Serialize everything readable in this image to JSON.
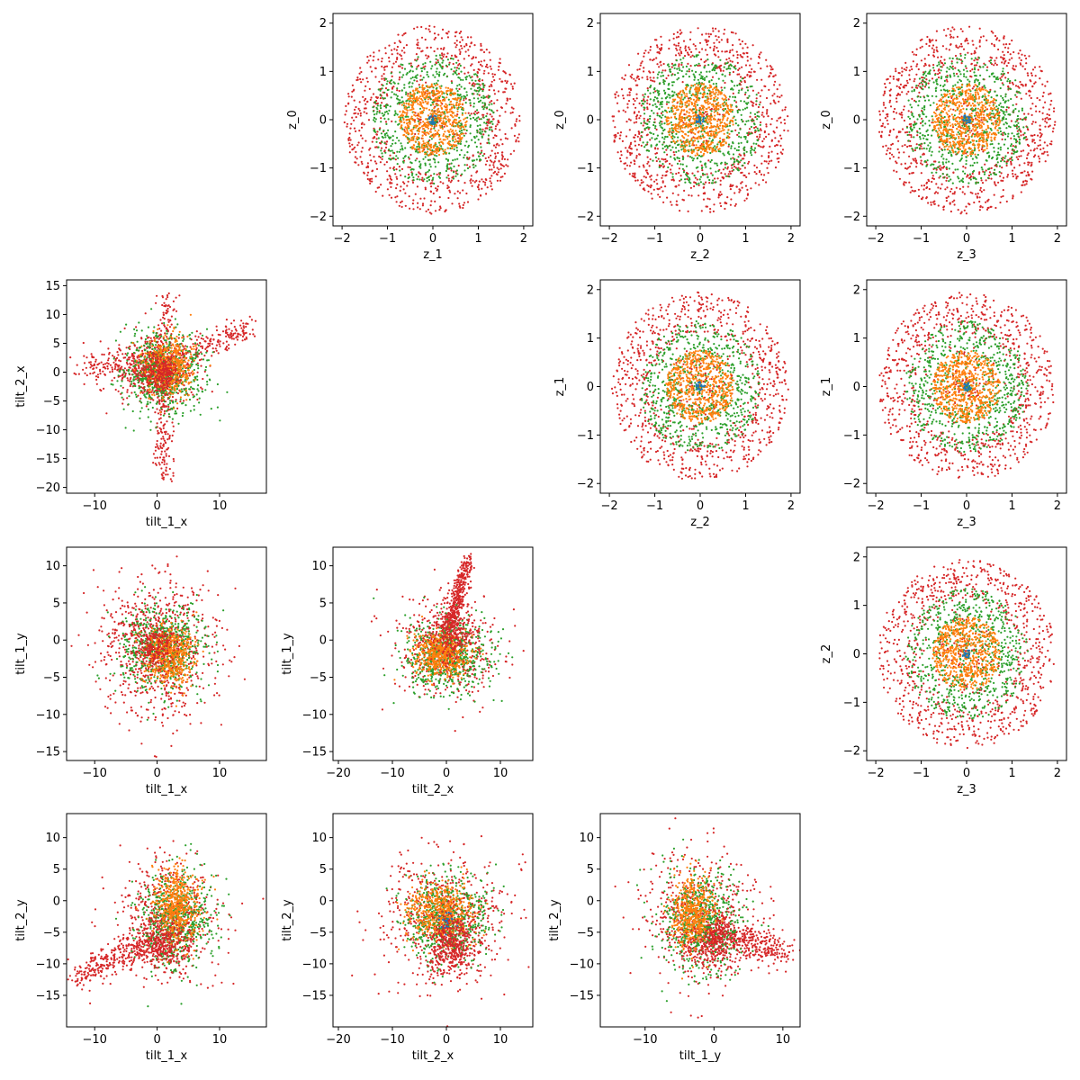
{
  "colors": {
    "red": "#d62728",
    "green": "#2ca02c",
    "orange": "#ff7f0e",
    "blue": "#1f77b4"
  },
  "chart_data": [
    {
      "type": "scatter",
      "xlabel": "z_1",
      "ylabel": "z_0",
      "xlim": [
        -2.2,
        2.2
      ],
      "ylim": [
        -2.2,
        2.2
      ],
      "xticks": [
        -2,
        -1,
        0,
        1,
        2
      ],
      "yticks": [
        -2,
        -1,
        0,
        1,
        2
      ],
      "grid": false,
      "legend": "none",
      "series": [
        {
          "color": "red",
          "distribution": "ring",
          "center": [
            0,
            0
          ],
          "spread": [
            1.95,
            1.95
          ],
          "inner": [
            1.1,
            1.1
          ],
          "count": 900
        },
        {
          "color": "green",
          "distribution": "ring",
          "center": [
            0,
            0
          ],
          "spread": [
            1.35,
            1.35
          ],
          "inner": [
            0.45,
            0.45
          ],
          "count": 700
        },
        {
          "color": "orange",
          "distribution": "disk",
          "center": [
            0,
            0
          ],
          "spread": [
            0.75,
            0.75
          ],
          "count": 600
        },
        {
          "color": "blue",
          "distribution": "disk",
          "center": [
            0,
            0
          ],
          "spread": [
            0.1,
            0.1
          ],
          "count": 20
        }
      ]
    },
    {
      "type": "scatter",
      "xlabel": "z_2",
      "ylabel": "z_0",
      "xlim": [
        -2.2,
        2.2
      ],
      "ylim": [
        -2.2,
        2.2
      ],
      "xticks": [
        -2,
        -1,
        0,
        1,
        2
      ],
      "yticks": [
        -2,
        -1,
        0,
        1,
        2
      ],
      "grid": false,
      "legend": "none",
      "series": [
        {
          "color": "red",
          "distribution": "ring",
          "center": [
            0,
            0
          ],
          "spread": [
            1.95,
            1.95
          ],
          "inner": [
            1.1,
            1.1
          ],
          "count": 900
        },
        {
          "color": "green",
          "distribution": "ring",
          "center": [
            0,
            0
          ],
          "spread": [
            1.35,
            1.35
          ],
          "inner": [
            0.45,
            0.45
          ],
          "count": 700
        },
        {
          "color": "orange",
          "distribution": "disk",
          "center": [
            0,
            0
          ],
          "spread": [
            0.75,
            0.75
          ],
          "count": 600
        },
        {
          "color": "blue",
          "distribution": "disk",
          "center": [
            0,
            0
          ],
          "spread": [
            0.1,
            0.1
          ],
          "count": 20
        }
      ]
    },
    {
      "type": "scatter",
      "xlabel": "z_3",
      "ylabel": "z_0",
      "xlim": [
        -2.2,
        2.2
      ],
      "ylim": [
        -2.2,
        2.2
      ],
      "xticks": [
        -2,
        -1,
        0,
        1,
        2
      ],
      "yticks": [
        -2,
        -1,
        0,
        1,
        2
      ],
      "grid": false,
      "legend": "none",
      "series": [
        {
          "color": "red",
          "distribution": "ring",
          "center": [
            0,
            0
          ],
          "spread": [
            1.95,
            1.95
          ],
          "inner": [
            1.1,
            1.1
          ],
          "count": 900
        },
        {
          "color": "green",
          "distribution": "ring",
          "center": [
            0,
            0
          ],
          "spread": [
            1.35,
            1.35
          ],
          "inner": [
            0.45,
            0.45
          ],
          "count": 700
        },
        {
          "color": "orange",
          "distribution": "disk",
          "center": [
            0,
            0
          ],
          "spread": [
            0.75,
            0.75
          ],
          "count": 600
        },
        {
          "color": "blue",
          "distribution": "disk",
          "center": [
            0,
            0
          ],
          "spread": [
            0.1,
            0.1
          ],
          "count": 20
        }
      ]
    },
    {
      "type": "scatter",
      "xlabel": "tilt_1_x",
      "ylabel": "tilt_2_x",
      "xlim": [
        -14.5,
        17.5
      ],
      "ylim": [
        -21,
        16
      ],
      "xticks": [
        -10,
        0,
        10
      ],
      "yticks": [
        -20,
        -15,
        -10,
        -5,
        0,
        5,
        10,
        15
      ],
      "grid": false,
      "legend": "none",
      "series": [
        {
          "color": "red",
          "distribution": "gauss",
          "center": [
            0,
            0
          ],
          "spread": [
            3,
            3
          ],
          "count": 500
        },
        {
          "color": "red",
          "distribution": "line",
          "center": [
            -12,
            1
          ],
          "end": [
            2,
            1
          ],
          "spread": [
            1,
            1.4
          ],
          "count": 200
        },
        {
          "color": "red",
          "distribution": "line",
          "center": [
            2,
            2
          ],
          "end": [
            15,
            8
          ],
          "spread": [
            1,
            1.3
          ],
          "count": 200
        },
        {
          "color": "red",
          "distribution": "line",
          "center": [
            1,
            -2
          ],
          "end": [
            1,
            -18
          ],
          "spread": [
            0.8,
            1
          ],
          "count": 150
        },
        {
          "color": "red",
          "distribution": "line",
          "center": [
            0,
            3
          ],
          "end": [
            2,
            13
          ],
          "spread": [
            0.8,
            1
          ],
          "count": 90
        },
        {
          "color": "green",
          "distribution": "gauss",
          "center": [
            1,
            0
          ],
          "spread": [
            3.2,
            4
          ],
          "count": 600
        },
        {
          "color": "orange",
          "distribution": "gauss",
          "center": [
            2,
            1
          ],
          "spread": [
            2,
            2.5
          ],
          "count": 500
        },
        {
          "color": "red",
          "distribution": "gauss",
          "center": [
            0.5,
            0
          ],
          "spread": [
            1.5,
            1.5
          ],
          "count": 250
        }
      ]
    },
    {
      "type": "scatter",
      "xlabel": "z_2",
      "ylabel": "z_1",
      "xlim": [
        -2.2,
        2.2
      ],
      "ylim": [
        -2.2,
        2.2
      ],
      "xticks": [
        -2,
        -1,
        0,
        1,
        2
      ],
      "yticks": [
        -2,
        -1,
        0,
        1,
        2
      ],
      "grid": false,
      "legend": "none",
      "series": [
        {
          "color": "red",
          "distribution": "ring",
          "center": [
            0,
            0
          ],
          "spread": [
            1.95,
            1.95
          ],
          "inner": [
            1.1,
            1.1
          ],
          "count": 900
        },
        {
          "color": "green",
          "distribution": "ring",
          "center": [
            0,
            0
          ],
          "spread": [
            1.35,
            1.35
          ],
          "inner": [
            0.45,
            0.45
          ],
          "count": 700
        },
        {
          "color": "orange",
          "distribution": "disk",
          "center": [
            0,
            0
          ],
          "spread": [
            0.75,
            0.75
          ],
          "count": 600
        },
        {
          "color": "blue",
          "distribution": "disk",
          "center": [
            0,
            0
          ],
          "spread": [
            0.1,
            0.1
          ],
          "count": 20
        }
      ]
    },
    {
      "type": "scatter",
      "xlabel": "z_3",
      "ylabel": "z_1",
      "xlim": [
        -2.2,
        2.2
      ],
      "ylim": [
        -2.2,
        2.2
      ],
      "xticks": [
        -2,
        -1,
        0,
        1,
        2
      ],
      "yticks": [
        -2,
        -1,
        0,
        1,
        2
      ],
      "grid": false,
      "legend": "none",
      "series": [
        {
          "color": "red",
          "distribution": "ring",
          "center": [
            0,
            0
          ],
          "spread": [
            1.95,
            1.95
          ],
          "inner": [
            1.1,
            1.1
          ],
          "count": 900
        },
        {
          "color": "green",
          "distribution": "ring",
          "center": [
            0,
            0
          ],
          "spread": [
            1.35,
            1.35
          ],
          "inner": [
            0.45,
            0.45
          ],
          "count": 700
        },
        {
          "color": "orange",
          "distribution": "disk",
          "center": [
            0,
            0
          ],
          "spread": [
            0.75,
            0.75
          ],
          "count": 600
        },
        {
          "color": "blue",
          "distribution": "disk",
          "center": [
            0,
            0
          ],
          "spread": [
            0.1,
            0.1
          ],
          "count": 20
        }
      ]
    },
    {
      "type": "scatter",
      "xlabel": "tilt_1_x",
      "ylabel": "tilt_1_y",
      "xlim": [
        -14.5,
        17.5
      ],
      "ylim": [
        -16.2,
        12.5
      ],
      "xticks": [
        -10,
        0,
        10
      ],
      "yticks": [
        -15,
        -10,
        -5,
        0,
        5,
        10
      ],
      "grid": false,
      "legend": "none",
      "series": [
        {
          "color": "red",
          "distribution": "gauss",
          "center": [
            0,
            -1
          ],
          "spread": [
            4.5,
            4.5
          ],
          "count": 800
        },
        {
          "color": "green",
          "distribution": "gauss",
          "center": [
            1,
            -1
          ],
          "spread": [
            3.5,
            3
          ],
          "count": 600
        },
        {
          "color": "orange",
          "distribution": "gauss",
          "center": [
            2,
            -2
          ],
          "spread": [
            2,
            2
          ],
          "count": 500
        },
        {
          "color": "red",
          "distribution": "gauss",
          "center": [
            0,
            -1
          ],
          "spread": [
            1.5,
            1.5
          ],
          "count": 200
        }
      ]
    },
    {
      "type": "scatter",
      "xlabel": "tilt_2_x",
      "ylabel": "tilt_1_y",
      "xlim": [
        -21,
        16
      ],
      "ylim": [
        -16.2,
        12.5
      ],
      "xticks": [
        -20,
        -10,
        0,
        10
      ],
      "yticks": [
        -15,
        -10,
        -5,
        0,
        5,
        10
      ],
      "grid": false,
      "legend": "none",
      "series": [
        {
          "color": "red",
          "distribution": "line",
          "center": [
            0,
            0
          ],
          "end": [
            4,
            11
          ],
          "spread": [
            0.8,
            0.6
          ],
          "count": 350
        },
        {
          "color": "red",
          "distribution": "gauss",
          "center": [
            0,
            -1
          ],
          "spread": [
            5,
            3.5
          ],
          "count": 500
        },
        {
          "color": "green",
          "distribution": "gauss",
          "center": [
            0,
            -2
          ],
          "spread": [
            4,
            2.5
          ],
          "count": 600
        },
        {
          "color": "orange",
          "distribution": "gauss",
          "center": [
            -1,
            -2
          ],
          "spread": [
            2.5,
            1.5
          ],
          "count": 500
        },
        {
          "color": "red",
          "distribution": "gauss",
          "center": [
            1,
            1
          ],
          "spread": [
            2,
            2
          ],
          "count": 250
        }
      ]
    },
    {
      "type": "scatter",
      "xlabel": "z_3",
      "ylabel": "z_2",
      "xlim": [
        -2.2,
        2.2
      ],
      "ylim": [
        -2.2,
        2.2
      ],
      "xticks": [
        -2,
        -1,
        0,
        1,
        2
      ],
      "yticks": [
        -2,
        -1,
        0,
        1,
        2
      ],
      "grid": false,
      "legend": "none",
      "series": [
        {
          "color": "red",
          "distribution": "ring",
          "center": [
            0,
            0
          ],
          "spread": [
            1.95,
            1.95
          ],
          "inner": [
            1.1,
            1.1
          ],
          "count": 900
        },
        {
          "color": "green",
          "distribution": "ring",
          "center": [
            0,
            0
          ],
          "spread": [
            1.35,
            1.35
          ],
          "inner": [
            0.45,
            0.45
          ],
          "count": 700
        },
        {
          "color": "orange",
          "distribution": "disk",
          "center": [
            0,
            0
          ],
          "spread": [
            0.75,
            0.75
          ],
          "count": 600
        },
        {
          "color": "blue",
          "distribution": "disk",
          "center": [
            0,
            0
          ],
          "spread": [
            0.1,
            0.1
          ],
          "count": 20
        }
      ]
    },
    {
      "type": "scatter",
      "xlabel": "tilt_1_x",
      "ylabel": "tilt_2_y",
      "xlim": [
        -14.5,
        17.5
      ],
      "ylim": [
        -20,
        13.8
      ],
      "xticks": [
        -10,
        0,
        10
      ],
      "yticks": [
        -15,
        -10,
        -5,
        0,
        5,
        10
      ],
      "grid": false,
      "legend": "none",
      "series": [
        {
          "color": "red",
          "distribution": "line",
          "center": [
            -13,
            -12
          ],
          "end": [
            0,
            -6
          ],
          "spread": [
            1,
            1.3
          ],
          "count": 300
        },
        {
          "color": "red",
          "distribution": "gauss",
          "center": [
            2,
            -3
          ],
          "spread": [
            4,
            5
          ],
          "count": 500
        },
        {
          "color": "green",
          "distribution": "gauss",
          "center": [
            3,
            -3
          ],
          "spread": [
            3,
            4
          ],
          "count": 600
        },
        {
          "color": "orange",
          "distribution": "gauss",
          "center": [
            3,
            -1
          ],
          "spread": [
            1.8,
            3
          ],
          "count": 500
        },
        {
          "color": "red",
          "distribution": "gauss",
          "center": [
            1,
            -7
          ],
          "spread": [
            2,
            2
          ],
          "count": 300
        }
      ]
    },
    {
      "type": "scatter",
      "xlabel": "tilt_2_x",
      "ylabel": "tilt_2_y",
      "xlim": [
        -21,
        16
      ],
      "ylim": [
        -20,
        13.8
      ],
      "xticks": [
        -20,
        -10,
        0,
        10
      ],
      "yticks": [
        -15,
        -10,
        -5,
        0,
        5,
        10
      ],
      "grid": false,
      "legend": "none",
      "series": [
        {
          "color": "red",
          "distribution": "gauss",
          "center": [
            0,
            -3
          ],
          "spread": [
            6,
            5
          ],
          "count": 600
        },
        {
          "color": "green",
          "distribution": "gauss",
          "center": [
            0,
            -3
          ],
          "spread": [
            4,
            3.5
          ],
          "count": 600
        },
        {
          "color": "orange",
          "distribution": "gauss",
          "center": [
            -1,
            -2
          ],
          "spread": [
            3,
            2.5
          ],
          "count": 500
        },
        {
          "color": "red",
          "distribution": "gauss",
          "center": [
            1,
            -7
          ],
          "spread": [
            2,
            2.5
          ],
          "count": 400
        },
        {
          "color": "blue",
          "distribution": "gauss",
          "center": [
            0,
            -3
          ],
          "spread": [
            1,
            1
          ],
          "count": 20
        }
      ]
    },
    {
      "type": "scatter",
      "xlabel": "tilt_1_y",
      "ylabel": "tilt_2_y",
      "xlim": [
        -16.5,
        12.5
      ],
      "ylim": [
        -20,
        13.8
      ],
      "xticks": [
        -10,
        0,
        10
      ],
      "yticks": [
        -15,
        -10,
        -5,
        0,
        5,
        10
      ],
      "grid": false,
      "legend": "none",
      "series": [
        {
          "color": "red",
          "distribution": "gauss",
          "center": [
            -2,
            -3
          ],
          "spread": [
            4,
            5
          ],
          "count": 500
        },
        {
          "color": "red",
          "distribution": "line",
          "center": [
            -2,
            -4
          ],
          "end": [
            10,
            -8
          ],
          "spread": [
            1.3,
            1.3
          ],
          "count": 400
        },
        {
          "color": "green",
          "distribution": "gauss",
          "center": [
            -2,
            -3
          ],
          "spread": [
            3,
            4
          ],
          "count": 600
        },
        {
          "color": "orange",
          "distribution": "gauss",
          "center": [
            -3,
            -2
          ],
          "spread": [
            1.5,
            3
          ],
          "count": 500
        },
        {
          "color": "red",
          "distribution": "gauss",
          "center": [
            0,
            -7
          ],
          "spread": [
            2,
            2
          ],
          "count": 250
        }
      ]
    }
  ]
}
